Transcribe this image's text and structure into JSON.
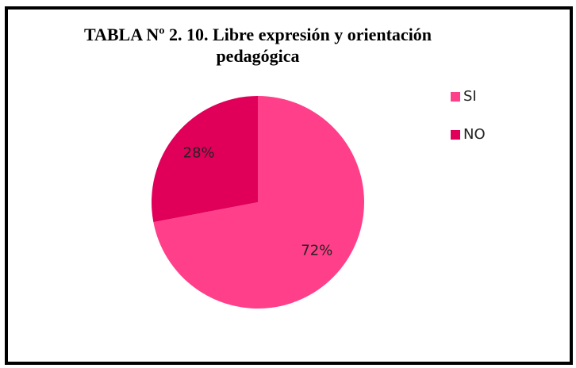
{
  "chart_data": {
    "type": "pie",
    "title": "TABLA Nº 2. 10. Libre expresión y orientación pedagógica",
    "categories": [
      "SI",
      "NO"
    ],
    "values": [
      72,
      28
    ],
    "value_labels": [
      "72%",
      "28%"
    ],
    "colors": [
      "#ff3f8a",
      "#e0005a"
    ],
    "legend": "right"
  }
}
